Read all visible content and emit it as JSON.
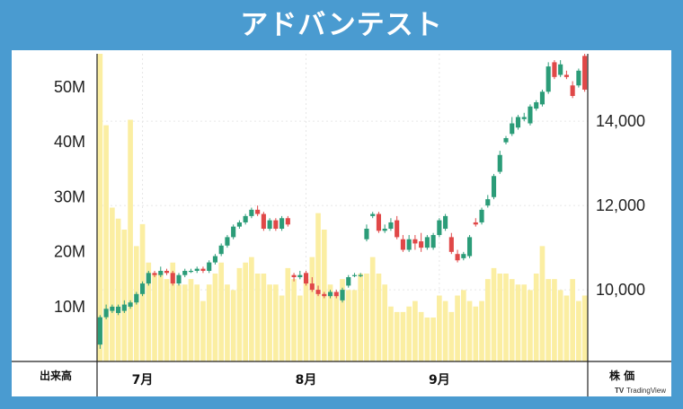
{
  "title": "アドバンテスト",
  "footer": {
    "volume_label": "出来高",
    "price_label": "株 価",
    "watermark": "TradingView"
  },
  "colors": {
    "up": "#2b9c78",
    "down": "#e04848",
    "volume": "#fbeea2",
    "background": "#4a9bd0"
  },
  "chart_data": {
    "type": "candlestick",
    "title": "アドバンテスト",
    "x_labels": [
      "7月",
      "8月",
      "9月"
    ],
    "volume_axis": {
      "ticks": [
        "10M",
        "20M",
        "30M",
        "40M",
        "50M"
      ],
      "range": [
        0,
        56000000
      ]
    },
    "price_axis": {
      "ticks": [
        "10,000",
        "12,000",
        "14,000"
      ],
      "range": [
        8300,
        15600
      ]
    },
    "grid": true,
    "candles": [
      [
        8700,
        9350,
        8600,
        9400
      ],
      [
        9350,
        9550,
        9300,
        9650
      ],
      [
        9500,
        9600,
        9450,
        9650
      ],
      [
        9450,
        9600,
        9400,
        9650
      ],
      [
        9500,
        9650,
        9450,
        9750
      ],
      [
        9600,
        9700,
        9550,
        9750
      ],
      [
        9700,
        9900,
        9650,
        9950
      ],
      [
        9900,
        10150,
        9850,
        10200
      ],
      [
        10150,
        10400,
        10100,
        10450
      ],
      [
        10400,
        10350,
        10300,
        10450
      ],
      [
        10350,
        10450,
        10300,
        10550
      ],
      [
        10450,
        10400,
        10350,
        10500
      ],
      [
        10400,
        10150,
        10100,
        10450
      ],
      [
        10150,
        10350,
        10100,
        10400
      ],
      [
        10350,
        10450,
        10300,
        10500
      ],
      [
        10450,
        10450,
        10400,
        10500
      ],
      [
        10450,
        10500,
        10400,
        10550
      ],
      [
        10500,
        10450,
        10400,
        10550
      ],
      [
        10450,
        10650,
        10400,
        10700
      ],
      [
        10650,
        10800,
        10600,
        10850
      ],
      [
        10850,
        11050,
        10800,
        11100
      ],
      [
        11050,
        11250,
        11000,
        11300
      ],
      [
        11250,
        11500,
        11200,
        11550
      ],
      [
        11500,
        11600,
        11450,
        11650
      ],
      [
        11600,
        11750,
        11550,
        11800
      ],
      [
        11750,
        11900,
        11700,
        11950
      ],
      [
        11900,
        11800,
        11750,
        12000
      ],
      [
        11800,
        11450,
        11400,
        11850
      ],
      [
        11450,
        11650,
        11400,
        11700
      ],
      [
        11650,
        11450,
        11400,
        11700
      ],
      [
        11450,
        11700,
        11400,
        11750
      ],
      [
        11700,
        11550,
        11500,
        11750
      ],
      [
        10350,
        10300,
        10200,
        10400
      ],
      [
        10300,
        10350,
        10250,
        10450
      ],
      [
        10400,
        10150,
        10100,
        10450
      ],
      [
        10150,
        10000,
        9950,
        10300
      ],
      [
        10000,
        9900,
        9850,
        10100
      ],
      [
        9900,
        9850,
        9800,
        9950
      ],
      [
        9850,
        9950,
        9800,
        10000
      ],
      [
        9950,
        9850,
        9800,
        10000
      ],
      [
        9750,
        10000,
        9700,
        10050
      ],
      [
        10100,
        10300,
        10050,
        10350
      ],
      [
        10350,
        10350,
        10300,
        10400
      ],
      [
        10350,
        10350,
        10300,
        10400
      ],
      [
        11200,
        11450,
        11150,
        11550
      ],
      [
        11750,
        11800,
        11700,
        11850
      ],
      [
        11800,
        11400,
        11350,
        11850
      ],
      [
        11400,
        11450,
        11350,
        11550
      ],
      [
        11450,
        11600,
        11400,
        11700
      ],
      [
        11650,
        11250,
        11200,
        11750
      ],
      [
        11200,
        10950,
        10900,
        11300
      ],
      [
        10950,
        11200,
        10900,
        11300
      ],
      [
        11200,
        11100,
        10950,
        11300
      ],
      [
        11150,
        11000,
        10900,
        11350
      ],
      [
        11000,
        11250,
        10950,
        11300
      ],
      [
        11000,
        11300,
        10950,
        11350
      ],
      [
        11300,
        11650,
        11250,
        11700
      ],
      [
        11450,
        11750,
        11400,
        11800
      ],
      [
        11250,
        10900,
        10850,
        11350
      ],
      [
        10850,
        10700,
        10650,
        10950
      ],
      [
        10750,
        10850,
        10700,
        10900
      ],
      [
        10800,
        11250,
        10750,
        11300
      ],
      [
        11600,
        11550,
        11500,
        11700
      ],
      [
        11600,
        11900,
        11550,
        11950
      ],
      [
        12000,
        12150,
        11950,
        12250
      ],
      [
        12200,
        12700,
        12150,
        12750
      ],
      [
        12800,
        13200,
        12750,
        13300
      ],
      [
        13500,
        13600,
        13450,
        13650
      ],
      [
        13700,
        13950,
        13650,
        14100
      ],
      [
        13850,
        14100,
        13800,
        14150
      ],
      [
        14050,
        14100,
        14000,
        14200
      ],
      [
        13950,
        14350,
        13900,
        14400
      ],
      [
        14300,
        14450,
        14250,
        14500
      ],
      [
        14400,
        14700,
        14350,
        14750
      ],
      [
        14700,
        15300,
        14650,
        15400
      ],
      [
        15400,
        15050,
        15000,
        15450
      ],
      [
        15100,
        15350,
        15050,
        15450
      ],
      [
        15100,
        15050,
        15000,
        15200
      ],
      [
        14850,
        14600,
        14550,
        14950
      ],
      [
        14850,
        15200,
        14800,
        15250
      ],
      [
        15550,
        14750,
        14700,
        15600
      ]
    ],
    "volumes_m": [
      56,
      43,
      28,
      26,
      24,
      44,
      21,
      25,
      18,
      16,
      16,
      15,
      18,
      14,
      14,
      15,
      14,
      11,
      14,
      16,
      18,
      14,
      13,
      17,
      18,
      19,
      16,
      16,
      14,
      14,
      12,
      17,
      15,
      12,
      15,
      19,
      27,
      24,
      14,
      12,
      15,
      13,
      13,
      16,
      16,
      19,
      16,
      14,
      10,
      9,
      9,
      10,
      11,
      9,
      8,
      8,
      12,
      11,
      9,
      12,
      13,
      11,
      10,
      11,
      15,
      17,
      16,
      16,
      15,
      14,
      14,
      13,
      16,
      21,
      15,
      15,
      13,
      12,
      15,
      11,
      12
    ]
  }
}
